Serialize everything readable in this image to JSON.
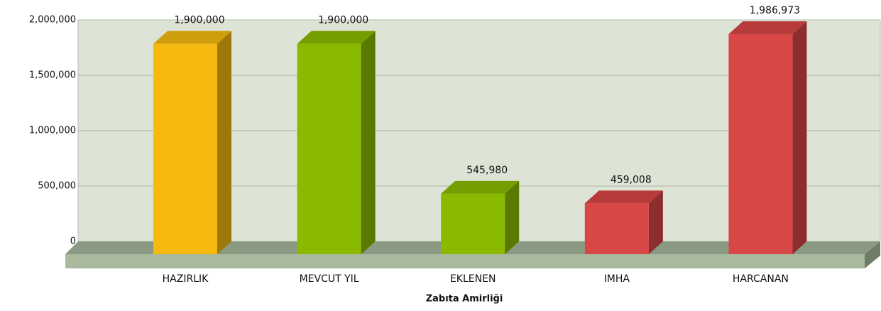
{
  "chart_data": {
    "type": "bar3d",
    "x_label": "Zabıta Amirliği",
    "categories": [
      "HAZIRLIK",
      "MEVCUT YIL",
      "EKLENEN",
      "IMHA",
      "HARCANAN"
    ],
    "values": [
      1900000,
      1900000,
      545980,
      459008,
      1986973
    ],
    "value_labels": [
      "1,900,000",
      "1,900,000",
      "545,980",
      "459,008",
      "1,986,973"
    ],
    "colors": [
      "#f5b90f",
      "#8aba00",
      "#8aba00",
      "#d94646",
      "#d94646"
    ],
    "ylim": [
      0,
      2000000
    ],
    "yticks": [
      {
        "value": 0,
        "label": "0"
      },
      {
        "value": 500000,
        "label": "500,000"
      },
      {
        "value": 1000000,
        "label": "1,000,000"
      },
      {
        "value": 1500000,
        "label": "1,500,000"
      },
      {
        "value": 2000000,
        "label": "2,000,000"
      }
    ],
    "grid": true
  }
}
